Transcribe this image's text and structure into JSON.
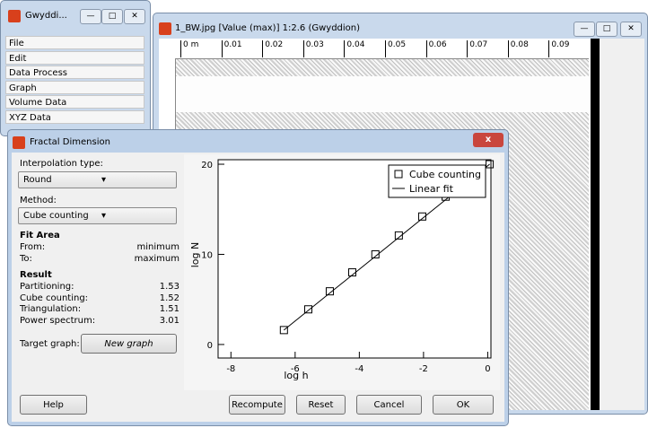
{
  "main_window": {
    "title": "Gwyddi...",
    "menu": [
      "File",
      "Edit",
      "Data Process",
      "Graph",
      "Volume Data",
      "XYZ Data"
    ]
  },
  "image_window": {
    "title": "1_BW.jpg [Value (max)] 1:2.6 (Gwyddion)",
    "ruler": [
      "0 m",
      "0.01",
      "0.02",
      "0.03",
      "0.04",
      "0.05",
      "0.06",
      "0.07",
      "0.08",
      "0.09"
    ]
  },
  "dialog": {
    "title": "Fractal Dimension",
    "interpolation_label": "Interpolation type:",
    "interpolation": "Round",
    "method_label": "Method:",
    "method": "Cube counting",
    "fit_area": "Fit Area",
    "from_label": "From:",
    "from": "minimum",
    "to_label": "To:",
    "to": "maximum",
    "result": "Result",
    "results": [
      {
        "label": "Partitioning:",
        "value": "1.53"
      },
      {
        "label": "Cube counting:",
        "value": "1.52"
      },
      {
        "label": "Triangulation:",
        "value": "1.51"
      },
      {
        "label": "Power spectrum:",
        "value": "3.01"
      }
    ],
    "target_label": "Target graph:",
    "target": "New graph",
    "buttons": [
      "Help",
      "Recompute",
      "Reset",
      "Cancel",
      "OK"
    ]
  },
  "chart_data": {
    "type": "scatter",
    "xlabel": "log h",
    "ylabel": "log N",
    "xlim": [
      -8.4,
      0.1
    ],
    "ylim": [
      -1.5,
      20.5
    ],
    "xticks": [
      -8,
      -6,
      -4,
      -2,
      0
    ],
    "yticks": [
      0,
      10,
      20
    ],
    "legend": "upper right",
    "series": [
      {
        "name": "Cube counting",
        "color": "#000000",
        "style": "markers",
        "x": [
          -6.35,
          -5.59,
          -4.92,
          -4.22,
          -3.5,
          -2.77,
          -2.04,
          -1.31,
          0.06
        ],
        "values": [
          1.6,
          3.9,
          5.9,
          8.0,
          10.0,
          12.1,
          14.2,
          16.4,
          20.0
        ]
      },
      {
        "name": "Linear fit",
        "color": "#000000",
        "style": "line",
        "x": [
          -6.35,
          0.06
        ],
        "values": [
          1.6,
          20.0
        ]
      }
    ]
  }
}
